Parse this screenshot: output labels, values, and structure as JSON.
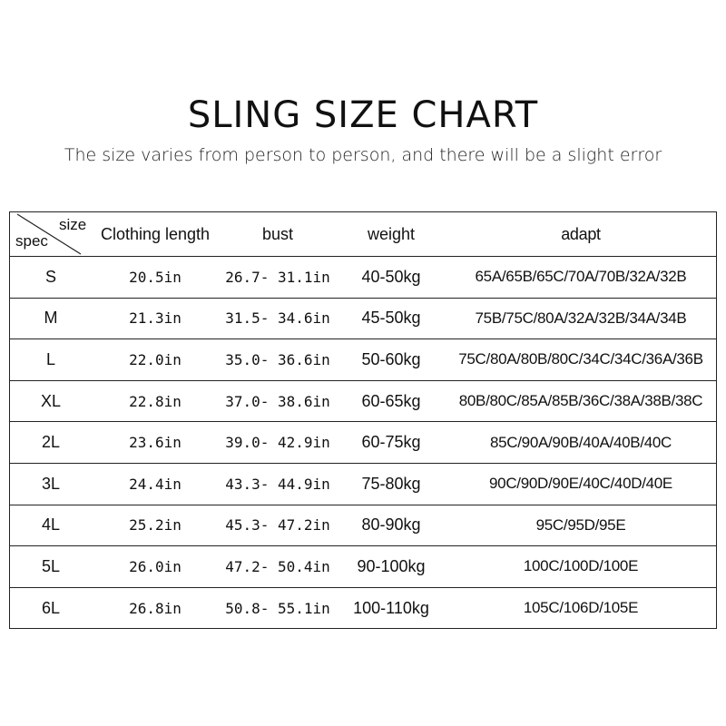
{
  "title": "SLING SIZE CHART",
  "subtitle": "The size varies from person to person, and there will be a slight error",
  "table": {
    "corner": {
      "top": "size",
      "bottom": "spec"
    },
    "headers": [
      "Clothing length",
      "bust",
      "weight",
      "adapt"
    ],
    "rows": [
      [
        "S",
        "20.5in",
        "26.7- 31.1in",
        "40-50kg",
        "65A/65B/65C/70A/70B/32A/32B"
      ],
      [
        "M",
        "21.3in",
        "31.5- 34.6in",
        "45-50kg",
        "75B/75C/80A/32A/32B/34A/34B"
      ],
      [
        "L",
        "22.0in",
        "35.0- 36.6in",
        "50-60kg",
        "75C/80A/80B/80C/34C/34C/36A/36B"
      ],
      [
        "XL",
        "22.8in",
        "37.0- 38.6in",
        "60-65kg",
        "80B/80C/85A/85B/36C/38A/38B/38C"
      ],
      [
        "2L",
        "23.6in",
        "39.0- 42.9in",
        "60-75kg",
        "85C/90A/90B/40A/40B/40C"
      ],
      [
        "3L",
        "24.4in",
        "43.3- 44.9in",
        "75-80kg",
        "90C/90D/90E/40C/40D/40E"
      ],
      [
        "4L",
        "25.2in",
        "45.3- 47.2in",
        "80-90kg",
        "95C/95D/95E"
      ],
      [
        "5L",
        "26.0in",
        "47.2- 50.4in",
        "90-100kg",
        "100C/100D/100E"
      ],
      [
        "6L",
        "26.8in",
        "50.8- 55.1in",
        "100-110kg",
        "105C/106D/105E"
      ]
    ]
  }
}
